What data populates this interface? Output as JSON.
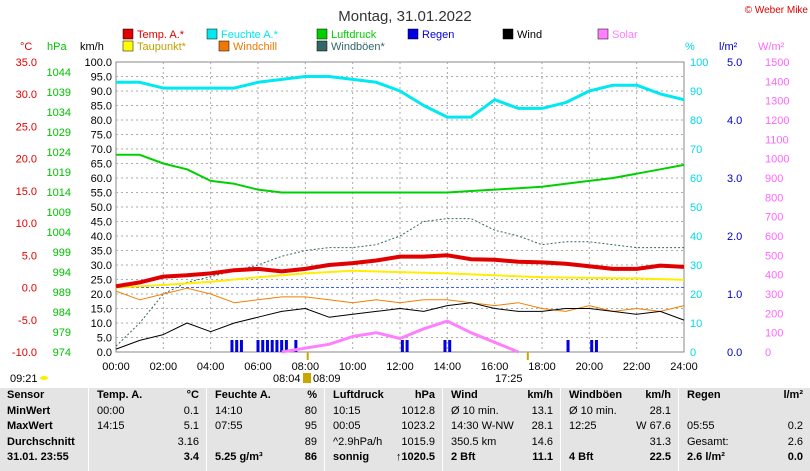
{
  "title": "Montag, 31.01.2022",
  "credit": "© Weber Mike",
  "axes": {
    "tempC": {
      "unit": "°C",
      "color": "#e00000",
      "min": -10,
      "max": 35,
      "ticks": [
        "35.0",
        "30.0",
        "25.0",
        "20.0",
        "15.0",
        "10.0",
        "5.0",
        "0.0",
        "-5.0",
        "-10.0"
      ]
    },
    "hPa": {
      "unit": "hPa",
      "color": "#00c000",
      "ticks": [
        "1044",
        "1039",
        "1034",
        "1029",
        "1024",
        "1019",
        "1014",
        "1009",
        "1004",
        "999",
        "994",
        "989",
        "984",
        "979",
        "974"
      ]
    },
    "kmh": {
      "unit": "km/h",
      "color": "#000000",
      "min": 0,
      "max": 100,
      "ticks": [
        "100.0",
        "95.0",
        "90.0",
        "85.0",
        "80.0",
        "75.0",
        "70.0",
        "65.0",
        "60.0",
        "55.0",
        "50.0",
        "45.0",
        "40.0",
        "35.0",
        "30.0",
        "25.0",
        "20.0",
        "15.0",
        "10.0",
        "5.0",
        "0.0"
      ]
    },
    "pct": {
      "unit": "%",
      "color": "#00d8e8",
      "ticks": [
        "100",
        "90",
        "80",
        "70",
        "60",
        "50",
        "40",
        "30",
        "20",
        "10",
        "0"
      ]
    },
    "rain": {
      "unit": "l/m²",
      "color": "#0000c0",
      "ticks": [
        "5.0",
        "4.0",
        "3.0",
        "2.0",
        "1.0",
        "0.0"
      ]
    },
    "solar": {
      "unit": "W/m²",
      "color": "#ff66ff",
      "ticks": [
        "1500",
        "1400",
        "1300",
        "1200",
        "1100",
        "1000",
        "900",
        "800",
        "700",
        "600",
        "500",
        "400",
        "300",
        "200",
        "100",
        "0"
      ]
    },
    "time": {
      "ticks": [
        "00:00",
        "02:00",
        "04:00",
        "06:00",
        "08:00",
        "10:00",
        "12:00",
        "14:00",
        "16:00",
        "18:00",
        "20:00",
        "22:00",
        "24:00"
      ]
    }
  },
  "legend": [
    {
      "label": "Temp. A.*",
      "color": "#e00000"
    },
    {
      "label": "Feuchte A.*",
      "color": "#00e8f0"
    },
    {
      "label": "Luftdruck",
      "color": "#00d000"
    },
    {
      "label": "Regen",
      "color": "#0000e0"
    },
    {
      "label": "Wind",
      "color": "#000000"
    },
    {
      "label": "Solar",
      "color": "#ff80ff"
    },
    {
      "label": "Taupunkt*",
      "color": "#ffff00"
    },
    {
      "label": "Windchill",
      "color": "#f07800"
    },
    {
      "label": "Windböen*",
      "color": "#336666"
    }
  ],
  "sun_times": {
    "dawn": "09:21",
    "sunrise": "08:04",
    "sunrise2": "08:09",
    "sunset": "17:25"
  },
  "chart_data": {
    "type": "line",
    "x_unit": "hours",
    "xlim": [
      0,
      24
    ],
    "series": [
      {
        "name": "Temp. A.*",
        "axis": "tempC",
        "x": [
          0,
          1,
          2,
          3,
          4,
          5,
          6,
          7,
          8,
          9,
          10,
          11,
          12,
          13,
          14,
          15,
          16,
          17,
          18,
          19,
          20,
          21,
          22,
          23,
          24
        ],
        "y": [
          0.2,
          0.8,
          1.7,
          1.9,
          2.2,
          2.7,
          2.9,
          2.5,
          2.9,
          3.5,
          3.8,
          4.2,
          4.8,
          4.8,
          5.0,
          4.4,
          4.3,
          4.0,
          3.9,
          3.7,
          3.3,
          2.9,
          2.9,
          3.4,
          3.2
        ]
      },
      {
        "name": "Taupunkt*",
        "axis": "tempC",
        "x": [
          0,
          2,
          4,
          6,
          8,
          10,
          12,
          14,
          16,
          18,
          20,
          22,
          24
        ],
        "y": [
          0.0,
          0.4,
          0.9,
          1.6,
          2.2,
          2.6,
          2.4,
          2.2,
          1.9,
          1.6,
          1.5,
          1.4,
          1.2
        ]
      },
      {
        "name": "Feuchte A.*",
        "axis": "pct",
        "x": [
          0,
          1,
          2,
          3,
          4,
          5,
          6,
          7,
          8,
          9,
          10,
          11,
          12,
          13,
          14,
          15,
          16,
          17,
          18,
          19,
          20,
          21,
          22,
          23,
          24
        ],
        "y": [
          93,
          93,
          91,
          91,
          91,
          91,
          93,
          94,
          95,
          95,
          94,
          93,
          90,
          85,
          81,
          81,
          87,
          84,
          84,
          86,
          90,
          92,
          92,
          89,
          87
        ]
      },
      {
        "name": "Luftdruck",
        "axis": "pct",
        "x": [
          0,
          1,
          2,
          3,
          4,
          5,
          6,
          7,
          8,
          9,
          10,
          11,
          12,
          13,
          14,
          15,
          16,
          17,
          18,
          19,
          20,
          21,
          22,
          23,
          24
        ],
        "y": [
          68,
          68,
          65,
          63,
          59,
          58,
          56,
          55,
          55,
          55,
          55,
          55,
          55,
          55,
          55,
          55.5,
          56,
          56.5,
          57,
          58,
          59,
          60,
          61.5,
          63,
          64.5
        ]
      },
      {
        "name": "Wind",
        "axis": "kmh",
        "x": [
          0,
          1,
          2,
          3,
          4,
          5,
          6,
          7,
          8,
          9,
          10,
          11,
          12,
          13,
          14,
          15,
          16,
          17,
          18,
          19,
          20,
          21,
          22,
          23,
          24
        ],
        "y": [
          1,
          4,
          6,
          10,
          7,
          10,
          12,
          14,
          15,
          12,
          13,
          14,
          15,
          14,
          16,
          17,
          15,
          14,
          14,
          15,
          15,
          14,
          13,
          14,
          11
        ]
      },
      {
        "name": "Windchill",
        "axis": "kmh",
        "x": [
          0,
          1,
          2,
          3,
          4,
          5,
          6,
          7,
          8,
          9,
          10,
          11,
          12,
          13,
          14,
          15,
          16,
          17,
          18,
          19,
          20,
          21,
          22,
          23,
          24
        ],
        "y": [
          21,
          18,
          20,
          22,
          20,
          17,
          18,
          19,
          19,
          18,
          17,
          18,
          17,
          18,
          18,
          17,
          16,
          17,
          15,
          14,
          16,
          14,
          15,
          14,
          16
        ]
      },
      {
        "name": "Windböen*",
        "axis": "kmh",
        "x": [
          0,
          1,
          2,
          3,
          4,
          5,
          6,
          7,
          8,
          9,
          10,
          11,
          12,
          13,
          14,
          15,
          16,
          17,
          18,
          19,
          20,
          21,
          22,
          23,
          24
        ],
        "y": [
          2,
          10,
          20,
          24,
          26,
          28,
          30,
          33,
          35,
          36,
          36,
          37,
          40,
          45,
          46,
          46,
          42,
          40,
          37,
          38,
          38,
          37,
          36,
          36,
          36
        ]
      },
      {
        "name": "Solar",
        "axis": "solar",
        "x": [
          7,
          8,
          9,
          10,
          11,
          12,
          13,
          14,
          15,
          16,
          17
        ],
        "y": [
          0,
          20,
          40,
          80,
          100,
          70,
          120,
          160,
          100,
          50,
          0
        ]
      },
      {
        "name": "Regen",
        "axis": "rain",
        "type": "bar",
        "x": [
          4.9,
          5.1,
          5.3,
          6.0,
          6.2,
          6.4,
          6.6,
          6.8,
          7.0,
          7.2,
          7.6,
          12.1,
          12.3,
          13.9,
          14.1,
          19.1,
          20.1,
          20.3
        ],
        "y": [
          0.02,
          0.02,
          0.02,
          0.02,
          0.02,
          0.02,
          0.02,
          0.02,
          0.02,
          0.02,
          0.02,
          0.02,
          0.02,
          0.02,
          0.02,
          0.02,
          0.02,
          0.02
        ]
      }
    ]
  },
  "stats": {
    "columns": [
      {
        "header": [
          "Sensor"
        ],
        "rows": [
          [
            "MinWert"
          ],
          [
            "MaxWert"
          ],
          [
            "Durchschnitt"
          ],
          [
            "31.01. 23:55"
          ]
        ]
      },
      {
        "header": [
          "Temp. A.",
          "°C"
        ],
        "rows": [
          [
            "00:00",
            "0.1"
          ],
          [
            "14:15",
            "5.1"
          ],
          [
            "",
            "3.16"
          ],
          [
            "",
            "3.4"
          ]
        ]
      },
      {
        "header": [
          "Feuchte A.",
          "%"
        ],
        "rows": [
          [
            "14:10",
            "80"
          ],
          [
            "07:55",
            "95"
          ],
          [
            "",
            "89"
          ],
          [
            "5.25 g/m³",
            "86"
          ]
        ]
      },
      {
        "header": [
          "Luftdruck",
          "hPa"
        ],
        "rows": [
          [
            "10:15",
            "1012.8"
          ],
          [
            "00:05",
            "1023.2"
          ],
          [
            "^2.9hPa/h",
            "1015.9"
          ],
          [
            "sonnig",
            "↑1020.5"
          ]
        ]
      },
      {
        "header": [
          "Wind",
          "km/h"
        ],
        "rows": [
          [
            "Ø 10 min.",
            "13.1"
          ],
          [
            "14:30   W-NW",
            "28.1"
          ],
          [
            "350.5 km",
            "14.6"
          ],
          [
            "2 Bft",
            "11.1"
          ]
        ]
      },
      {
        "header": [
          "Windböen",
          "km/h"
        ],
        "rows": [
          [
            "Ø 10 min.",
            "28.1"
          ],
          [
            "12:25",
            "W 67.6"
          ],
          [
            "",
            "31.3"
          ],
          [
            "4 Bft",
            "22.5"
          ]
        ]
      },
      {
        "header": [
          "Regen",
          "l/m²"
        ],
        "rows": [
          [
            "",
            ""
          ],
          [
            "05:55",
            "0.2"
          ],
          [
            "Gesamt:",
            "2.6"
          ],
          [
            "2.6 l/m²",
            "0.0"
          ]
        ]
      }
    ]
  }
}
